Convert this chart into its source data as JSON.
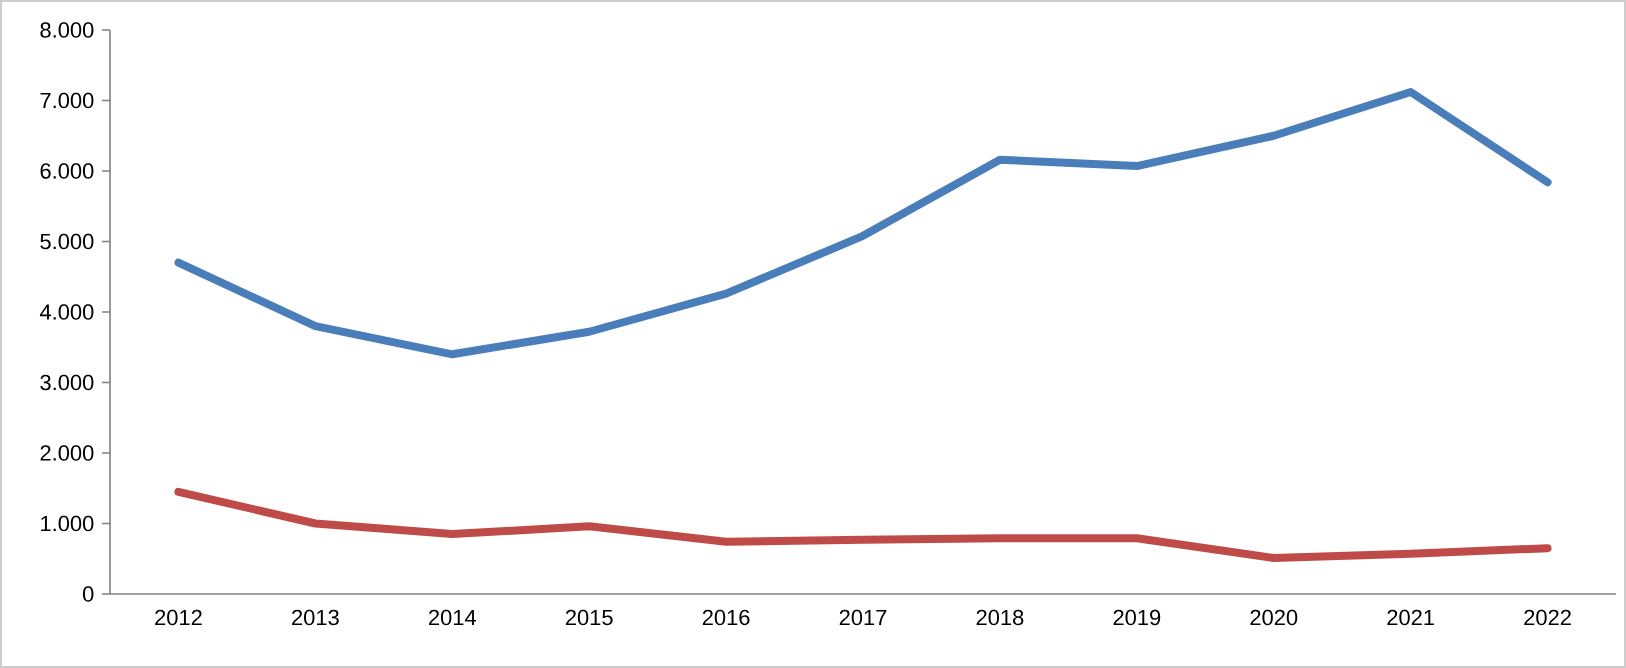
{
  "chart_data": {
    "type": "line",
    "categories": [
      "2012",
      "2013",
      "2014",
      "2015",
      "2016",
      "2017",
      "2018",
      "2019",
      "2020",
      "2021",
      "2022"
    ],
    "series": [
      {
        "color": "#4a7ebb",
        "values": [
          4700,
          3800,
          3400,
          3720,
          4260,
          5080,
          6160,
          6070,
          6500,
          7120,
          5840
        ]
      },
      {
        "color": "#be4b48",
        "values": [
          1450,
          1000,
          850,
          960,
          740,
          770,
          790,
          790,
          510,
          570,
          650
        ]
      }
    ],
    "ylim": [
      0,
      8000
    ],
    "yticks": [
      0,
      {
        "value": 1000,
        "label": "1.000"
      },
      {
        "value": 2000,
        "label": "2.000"
      },
      {
        "value": 3000,
        "label": "3.000"
      },
      {
        "value": 4000,
        "label": "4.000"
      },
      {
        "value": 5000,
        "label": "5.000"
      },
      {
        "value": 6000,
        "label": "6.000"
      },
      {
        "value": 7000,
        "label": "7.000"
      },
      {
        "value": 8000,
        "label": "8.000"
      }
    ],
    "grid": false,
    "marker": "none",
    "line_style": "solid"
  }
}
